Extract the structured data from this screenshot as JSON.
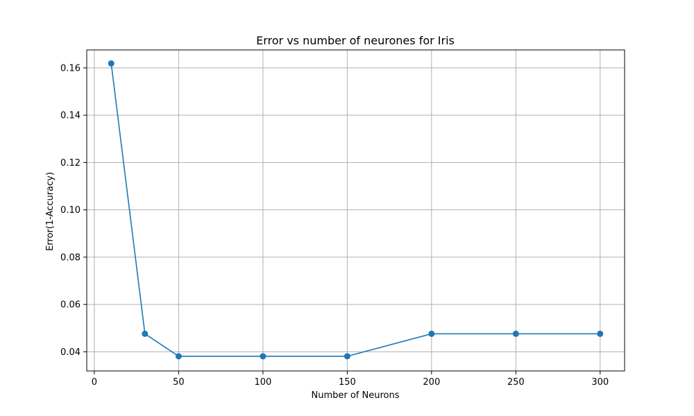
{
  "chart_data": {
    "type": "line",
    "title": "Error vs number of neurones for Iris",
    "xlabel": "Number of Neurons",
    "ylabel": "Error(1-Accuracy)",
    "x": [
      10,
      30,
      50,
      100,
      150,
      200,
      250,
      300
    ],
    "series": [
      {
        "values": [
          0.1619,
          0.0476,
          0.0381,
          0.0381,
          0.0381,
          0.0476,
          0.0476,
          0.0476
        ]
      }
    ],
    "xlim": [
      -4.5,
      314.5
    ],
    "ylim": [
      0.0319,
      0.1676
    ],
    "xticks": [
      0,
      50,
      100,
      150,
      200,
      250,
      300
    ],
    "yticks": [
      0.04,
      0.06,
      0.08,
      0.1,
      0.12,
      0.14,
      0.16
    ],
    "xtick_labels": [
      "0",
      "50",
      "100",
      "150",
      "200",
      "250",
      "300"
    ],
    "ytick_labels": [
      "0.04",
      "0.06",
      "0.08",
      "0.10",
      "0.12",
      "0.14",
      "0.16"
    ],
    "grid": true,
    "line_color": "#1f77b4",
    "grid_color": "#b0b0b0",
    "marker": "circle"
  }
}
